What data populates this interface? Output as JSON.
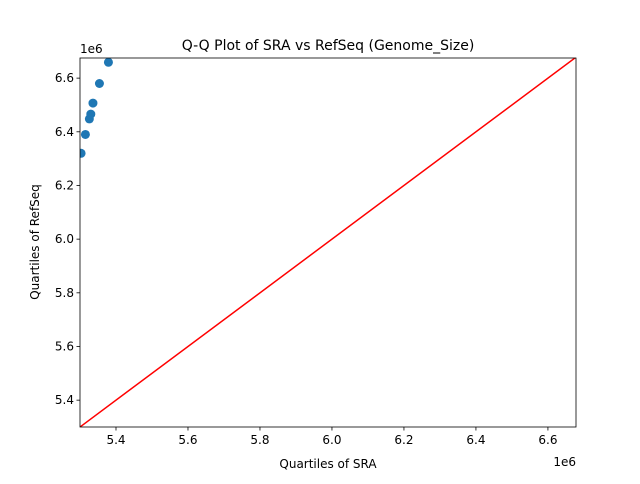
{
  "chart_data": {
    "type": "scatter",
    "title": "Q-Q Plot of SRA vs RefSeq (Genome_Size)",
    "xlabel": "Quartiles of SRA",
    "ylabel": "Quartiles of RefSeq",
    "x_offset_label": "1e6",
    "y_offset_label": "1e6",
    "xlim": [
      5.3,
      6.678
    ],
    "ylim": [
      5.3,
      6.675
    ],
    "xticks": [
      5.4,
      5.6,
      5.8,
      6.0,
      6.2,
      6.4,
      6.6
    ],
    "yticks": [
      5.4,
      5.6,
      5.8,
      6.0,
      6.2,
      6.4,
      6.6
    ],
    "tick_labels_x": [
      "5.4",
      "5.6",
      "5.8",
      "6.0",
      "6.2",
      "6.4",
      "6.6"
    ],
    "tick_labels_y": [
      "5.4",
      "5.6",
      "5.8",
      "6.0",
      "6.2",
      "6.4",
      "6.6"
    ],
    "grid": false,
    "points": {
      "color": "#1f77b4",
      "x": [
        5.303,
        5.315,
        5.326,
        5.33,
        5.336,
        5.354,
        5.379
      ],
      "y": [
        6.32,
        6.39,
        6.448,
        6.466,
        6.507,
        6.58,
        6.659
      ]
    },
    "reference_line": {
      "color": "#ff0000",
      "from": [
        5.3,
        5.3
      ],
      "to": [
        6.678,
        6.678
      ]
    }
  }
}
